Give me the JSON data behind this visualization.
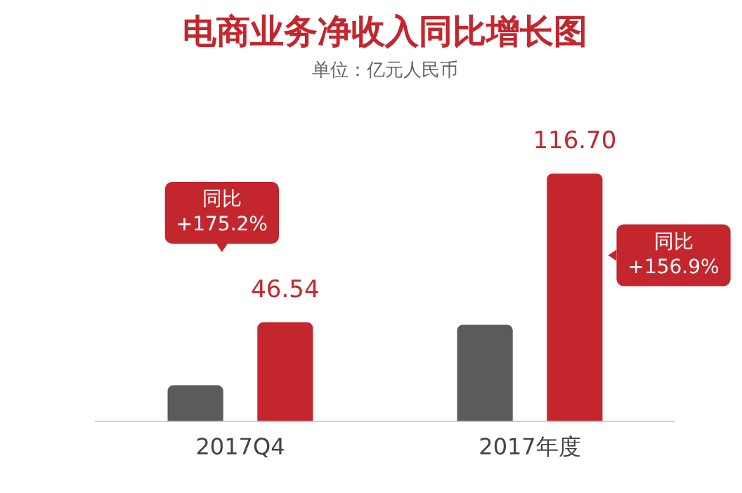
{
  "chart_data": {
    "type": "bar",
    "title": "电商业务净收入同比增长图",
    "subtitle": "单位：亿元人民币",
    "categories": [
      "2017Q4",
      "2017年度"
    ],
    "series": [
      {
        "color": "#5b5b5d",
        "values": [
          16.91,
          45.43
        ]
      },
      {
        "color": "#c4262e",
        "values": [
          46.54,
          116.7
        ],
        "value_labels": [
          "46.54",
          "116.70"
        ]
      }
    ],
    "tick_labels": "x",
    "grid": false,
    "legend": false,
    "annotations": [
      "同比\n+175.2%",
      "同比\n+156.9%"
    ]
  }
}
